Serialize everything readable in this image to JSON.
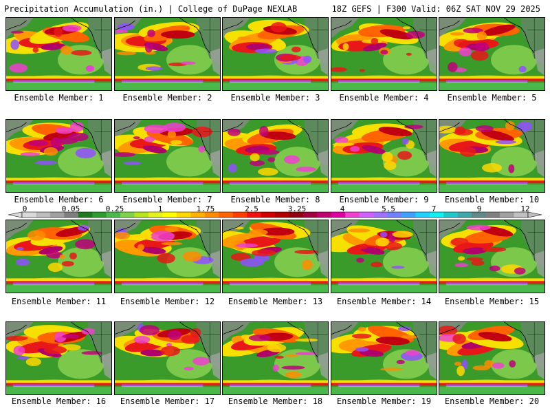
{
  "header": {
    "left": "Precipitation Accumulation (in.) | College of DuPage NEXLAB",
    "right": "18Z GEFS | F300 Valid: 06Z SAT NOV 29 2025"
  },
  "panels": [
    {
      "label": "Ensemble Member: 1"
    },
    {
      "label": "Ensemble Member: 2"
    },
    {
      "label": "Ensemble Member: 3"
    },
    {
      "label": "Ensemble Member: 4"
    },
    {
      "label": "Ensemble Member: 5"
    },
    {
      "label": "Ensemble Member: 6"
    },
    {
      "label": "Ensemble Member: 7"
    },
    {
      "label": "Ensemble Member: 8"
    },
    {
      "label": "Ensemble Member: 9"
    },
    {
      "label": "Ensemble Member: 10"
    },
    {
      "label": "Ensemble Member: 11"
    },
    {
      "label": "Ensemble Member: 12"
    },
    {
      "label": "Ensemble Member: 13"
    },
    {
      "label": "Ensemble Member: 14"
    },
    {
      "label": "Ensemble Member: 15"
    },
    {
      "label": "Ensemble Member: 16"
    },
    {
      "label": "Ensemble Member: 17"
    },
    {
      "label": "Ensemble Member: 18"
    },
    {
      "label": "Ensemble Member: 19"
    },
    {
      "label": "Ensemble Member: 20"
    }
  ],
  "colorbar": {
    "labels": [
      "0",
      "0.05",
      "0.25",
      "1",
      "1.75",
      "2.5",
      "3.25",
      "4",
      "5.5",
      "7",
      "9",
      "12"
    ],
    "colors": [
      "#d9d9d9",
      "#bdbdbd",
      "#a0a0a0",
      "#7f7f7f",
      "#1e7a1e",
      "#2e9b2e",
      "#4bb84b",
      "#7fd34b",
      "#b5e61d",
      "#e6f21d",
      "#ffff00",
      "#ffd800",
      "#ffb000",
      "#ff8c00",
      "#ff6400",
      "#ff3c00",
      "#f01010",
      "#d00000",
      "#b00000",
      "#900010",
      "#a00040",
      "#c00070",
      "#e000a0",
      "#f040d0",
      "#d060ff",
      "#a070ff",
      "#7080ff",
      "#40a0ff",
      "#20d0ff",
      "#10f0f0",
      "#20c8c8",
      "#40a8a8",
      "#608888",
      "#808080",
      "#a0a0a0",
      "#c0c0c0"
    ]
  }
}
